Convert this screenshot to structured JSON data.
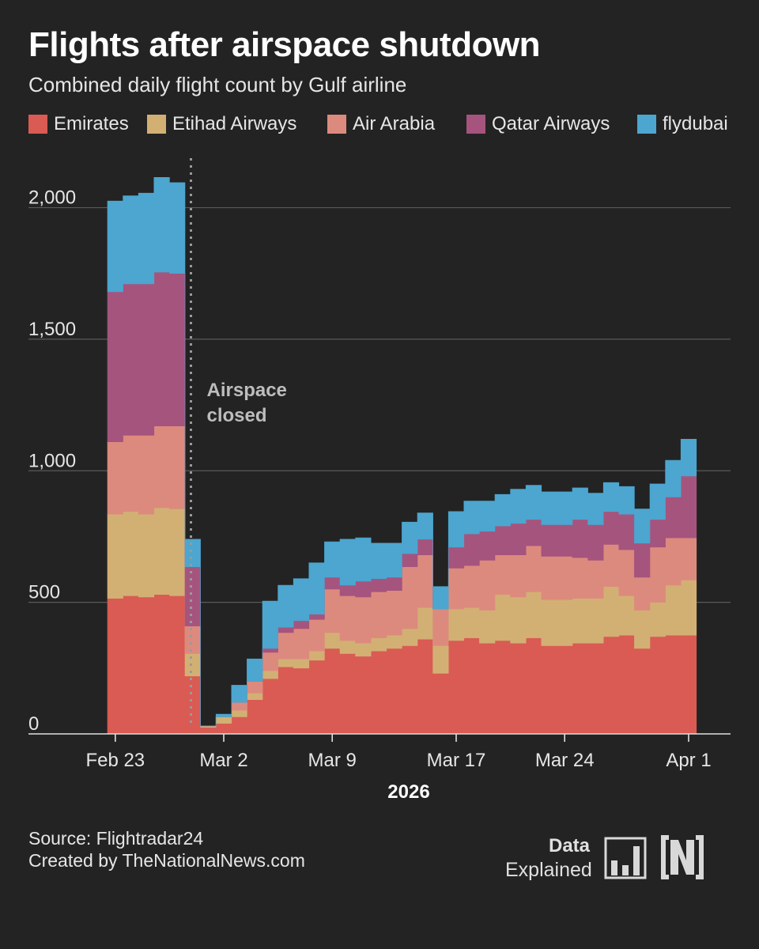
{
  "title": "Flights after airspace shutdown",
  "subtitle": "Combined daily flight count by Gulf airline",
  "colors": {
    "Emirates": "#d95b53",
    "Etihad Airways": "#d2b074",
    "Air Arabia": "#dd8a7e",
    "Qatar Airways": "#a5547e",
    "flydubai": "#4ca6cf",
    "background": "#232323",
    "grid": "#5a5a5a"
  },
  "legend": [
    "Emirates",
    "Etihad Airways",
    "Air Arabia",
    "Qatar Airways",
    "flydubai"
  ],
  "annotation": {
    "line1": "Airspace",
    "line2": "closed",
    "date": "Feb 28"
  },
  "x_title": "2026",
  "footer": {
    "source": "Source: Flightradar24",
    "created": "Created by TheNationalNews.com"
  },
  "brand": {
    "data": "Data",
    "explained": "Explained"
  },
  "chart_data": {
    "type": "area",
    "stacked": true,
    "title": "Flights after airspace shutdown",
    "ylabel": "",
    "xlabel": "2026",
    "ylim": [
      0,
      2200
    ],
    "yticks": [
      0,
      500,
      1000,
      1500,
      2000
    ],
    "ytick_labels": [
      "0",
      "500",
      "1,000",
      "1,500",
      "2,000"
    ],
    "xticks": [
      "Feb 23",
      "Mar 2",
      "Mar 9",
      "Mar 17",
      "Mar 24",
      "Apr 1"
    ],
    "categories": [
      "Feb 23",
      "Feb 24",
      "Feb 25",
      "Feb 26",
      "Feb 27",
      "Feb 28",
      "Mar 1",
      "Mar 2",
      "Mar 3",
      "Mar 4",
      "Mar 5",
      "Mar 6",
      "Mar 7",
      "Mar 8",
      "Mar 9",
      "Mar 10",
      "Mar 11",
      "Mar 12",
      "Mar 13",
      "Mar 14",
      "Mar 15",
      "Mar 16",
      "Mar 17",
      "Mar 18",
      "Mar 19",
      "Mar 20",
      "Mar 21",
      "Mar 22",
      "Mar 23",
      "Mar 24",
      "Mar 25",
      "Mar 26",
      "Mar 27",
      "Mar 28",
      "Mar 29",
      "Mar 30",
      "Mar 31",
      "Apr 1"
    ],
    "series": [
      {
        "name": "Emirates",
        "values": [
          515,
          525,
          520,
          530,
          525,
          220,
          25,
          40,
          65,
          130,
          210,
          255,
          250,
          280,
          325,
          305,
          295,
          315,
          325,
          335,
          360,
          230,
          355,
          365,
          345,
          355,
          345,
          365,
          335,
          335,
          345,
          345,
          370,
          375,
          325,
          370,
          375,
          375
        ]
      },
      {
        "name": "Etihad Airways",
        "values": [
          320,
          320,
          315,
          330,
          330,
          85,
          5,
          25,
          25,
          25,
          30,
          30,
          35,
          35,
          60,
          50,
          50,
          50,
          50,
          65,
          120,
          105,
          120,
          115,
          125,
          175,
          175,
          175,
          175,
          175,
          170,
          170,
          190,
          150,
          145,
          130,
          190,
          210
        ]
      },
      {
        "name": "Air Arabia",
        "values": [
          275,
          290,
          300,
          310,
          315,
          105,
          0,
          0,
          30,
          45,
          70,
          100,
          115,
          120,
          165,
          170,
          175,
          175,
          170,
          235,
          200,
          140,
          155,
          160,
          190,
          150,
          160,
          175,
          165,
          165,
          155,
          145,
          160,
          175,
          125,
          210,
          180,
          160
        ]
      },
      {
        "name": "Qatar Airways",
        "values": [
          570,
          575,
          575,
          585,
          580,
          225,
          0,
          0,
          0,
          0,
          15,
          20,
          30,
          20,
          45,
          40,
          60,
          50,
          50,
          50,
          60,
          0,
          80,
          120,
          110,
          110,
          120,
          100,
          120,
          120,
          145,
          135,
          125,
          135,
          130,
          105,
          155,
          235
        ]
      },
      {
        "name": "flydubai",
        "values": [
          345,
          335,
          345,
          360,
          345,
          105,
          0,
          10,
          65,
          85,
          180,
          160,
          160,
          195,
          135,
          175,
          165,
          135,
          130,
          120,
          100,
          85,
          135,
          125,
          115,
          120,
          130,
          130,
          125,
          125,
          120,
          120,
          110,
          105,
          130,
          135,
          140,
          140
        ]
      }
    ]
  }
}
